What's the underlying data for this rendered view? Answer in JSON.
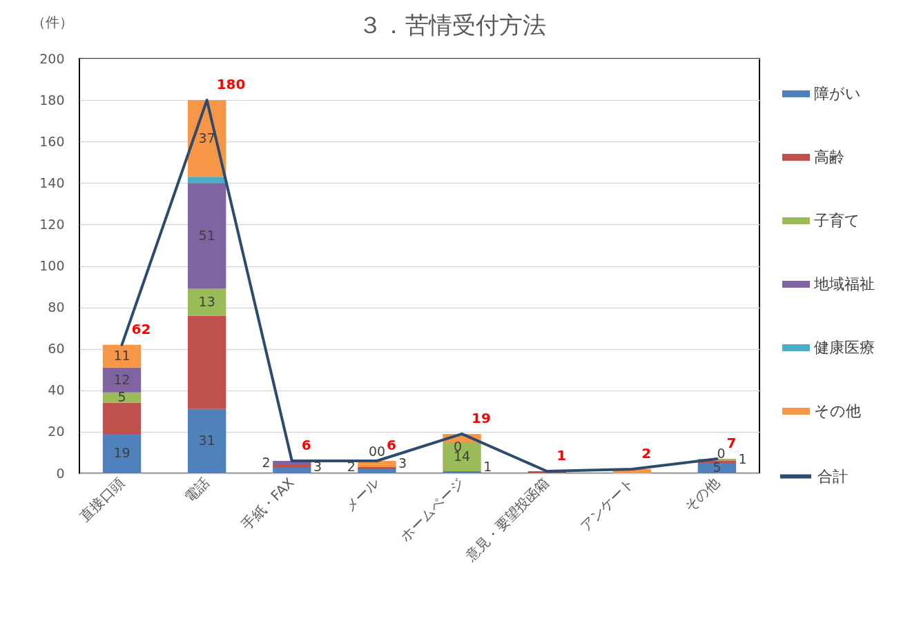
{
  "chart_data": {
    "type": "bar",
    "title": "３．苦情受付方法",
    "ylabel": "（件）",
    "categories": [
      "直接口頭",
      "電話",
      "手紙・FAX",
      "メール",
      "ホームページ",
      "意見・要望投函箱",
      "アンケート",
      "その他"
    ],
    "stacked": true,
    "ylim": [
      0,
      200
    ],
    "yticks": [
      0,
      20,
      40,
      60,
      80,
      100,
      120,
      140,
      160,
      180,
      200
    ],
    "grid": "y",
    "legend": "right",
    "series": [
      {
        "name": "障がい",
        "color": "#4f81bd",
        "values": [
          19,
          31,
          3,
          2,
          1,
          0,
          0,
          5
        ],
        "value_labels": [
          "19",
          "31",
          "3",
          "2",
          "1",
          null,
          null,
          "5"
        ]
      },
      {
        "name": "高齢",
        "color": "#c0504d",
        "values": [
          15,
          45,
          1,
          1,
          0,
          1,
          0,
          1
        ]
      },
      {
        "name": "子育て",
        "color": "#9bbb59",
        "values": [
          5,
          13,
          0,
          0,
          14,
          0,
          0,
          1
        ],
        "value_labels": [
          "5",
          "13",
          null,
          "0",
          "14",
          null,
          null,
          "1"
        ]
      },
      {
        "name": "地域福祉",
        "color": "#8064a2",
        "values": [
          12,
          51,
          2,
          0,
          0,
          0,
          0,
          0
        ],
        "value_labels": [
          "12",
          "51",
          "2",
          "0",
          "0",
          null,
          null,
          "0"
        ]
      },
      {
        "name": "健康医療",
        "color": "#4bacc6",
        "values": [
          0,
          3,
          0,
          0,
          0,
          0,
          0,
          0
        ]
      },
      {
        "name": "その他",
        "color": "#f79646",
        "values": [
          11,
          37,
          0,
          3,
          4,
          0,
          2,
          0
        ],
        "value_labels": [
          "11",
          "37",
          null,
          "3",
          null,
          null,
          null,
          null
        ]
      },
      {
        "name": "合計",
        "type": "line",
        "color": "#2e4a6e",
        "values": [
          62,
          180,
          6,
          6,
          19,
          1,
          2,
          7
        ],
        "value_labels": [
          "62",
          "180",
          "6",
          "6",
          "19",
          "1",
          "2",
          "7"
        ]
      }
    ]
  }
}
